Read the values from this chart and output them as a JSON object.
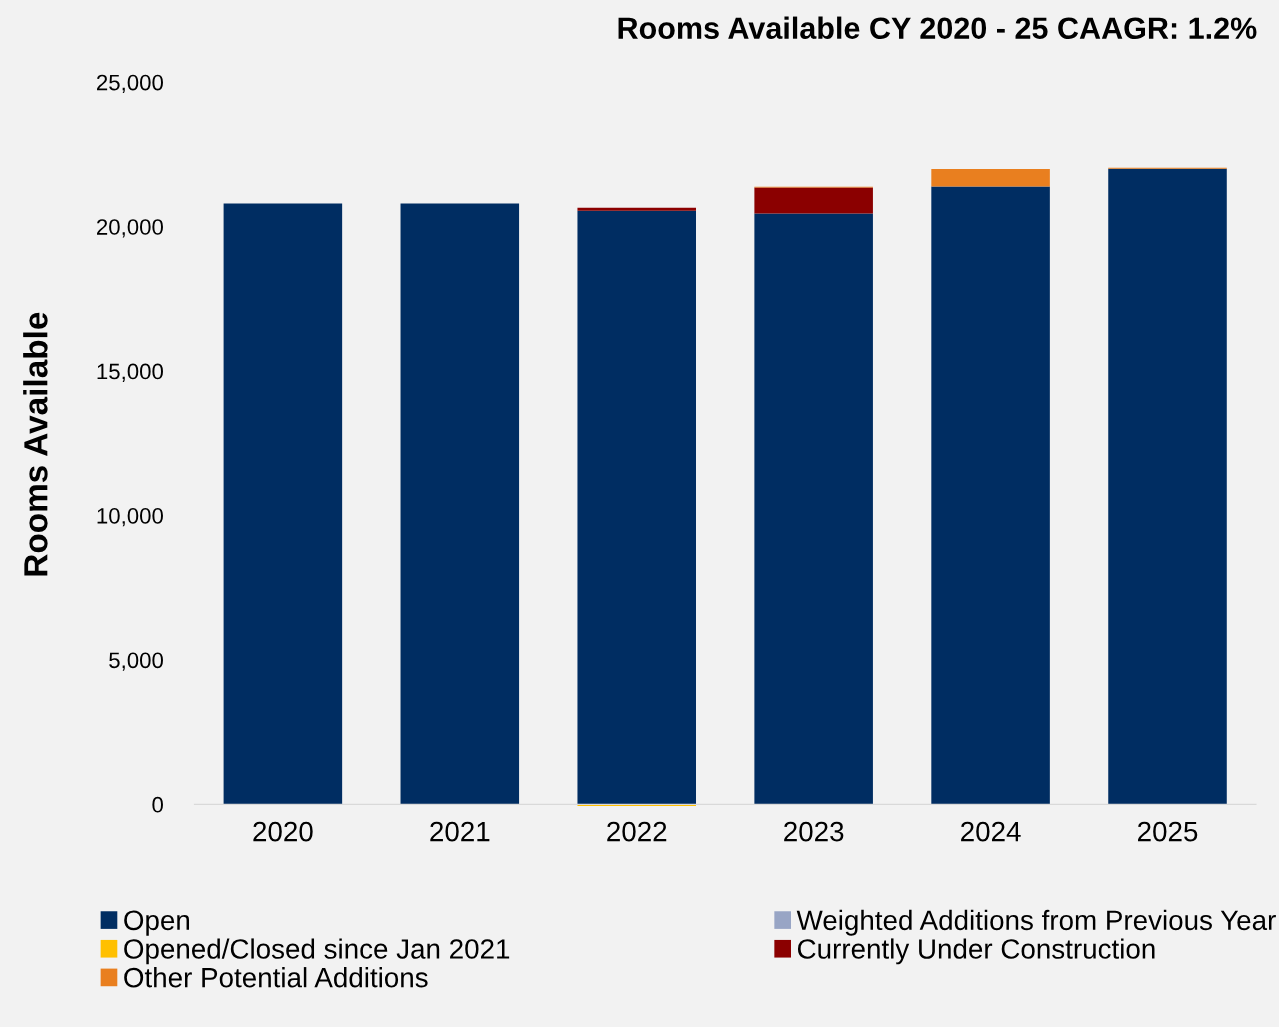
{
  "chart_data": {
    "type": "bar",
    "stacked": true,
    "title": "Rooms Available CY 2020 - 25 CAAGR: 1.2%",
    "ylabel": "Rooms Available",
    "categories": [
      "2020",
      "2021",
      "2022",
      "2023",
      "2024",
      "2025"
    ],
    "series": [
      {
        "name": "Open",
        "color": "#002d62",
        "values": [
          20800,
          20800,
          20550,
          20450,
          21390,
          22000
        ]
      },
      {
        "name": "Weighted Additions from Previous Year",
        "color": "#98a5c5",
        "values": [
          0,
          0,
          0,
          0,
          0,
          0
        ]
      },
      {
        "name": "Opened/Closed since Jan 2021",
        "color": "#ffc000",
        "values": [
          0,
          null,
          -60,
          0,
          0,
          0
        ]
      },
      {
        "name": "Currently Under Construction",
        "color": "#8b0000",
        "values": [
          0,
          0,
          100,
          900,
          0,
          0
        ]
      },
      {
        "name": "Other Potential Additions",
        "color": "#e97f1f",
        "values": [
          0,
          0,
          0,
          30,
          600,
          40
        ]
      }
    ],
    "ylim": [
      -100,
      25000
    ],
    "yticks": [
      {
        "value": 0,
        "label": "0"
      },
      {
        "value": 5000,
        "label": "5,000"
      },
      {
        "value": 10000,
        "label": "10,000"
      },
      {
        "value": 15000,
        "label": "15,000"
      },
      {
        "value": 20000,
        "label": "20,000"
      },
      {
        "value": 25000,
        "label": "25,000"
      }
    ],
    "grid": false,
    "legend": "bottom"
  }
}
